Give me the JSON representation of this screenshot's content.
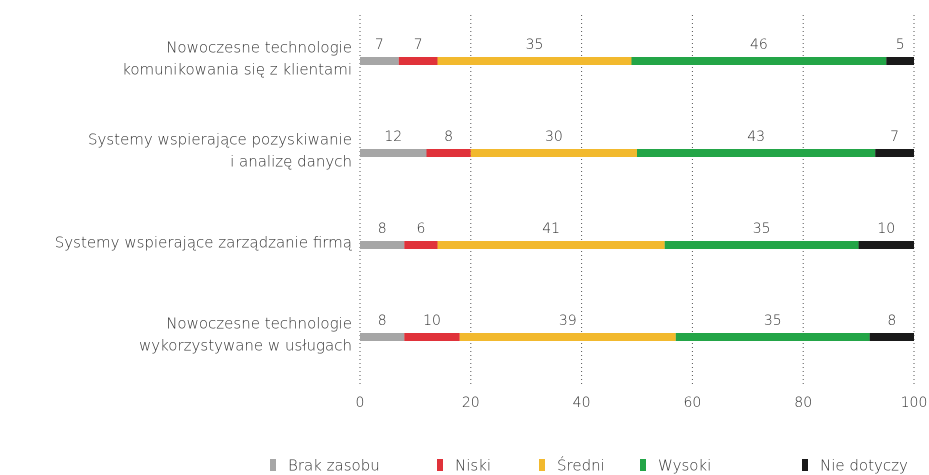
{
  "chart_data": {
    "type": "bar",
    "orientation": "horizontal",
    "stacked": true,
    "categories": [
      [
        "Nowoczesne technologie",
        "komunikowania się z klientami"
      ],
      [
        "Systemy wspierające pozyskiwanie",
        "i analizę danych"
      ],
      [
        "Systemy wspierające zarządzanie firmą"
      ],
      [
        "Nowoczesne technologie",
        "wykorzystywane w usługach"
      ]
    ],
    "series": [
      {
        "name": "Brak zasobu",
        "color": "#a6a6a6",
        "values": [
          7,
          12,
          8,
          8
        ]
      },
      {
        "name": "Niski",
        "color": "#e0323a",
        "values": [
          7,
          8,
          6,
          10
        ]
      },
      {
        "name": "Średni",
        "color": "#f2b92e",
        "values": [
          35,
          30,
          41,
          39
        ]
      },
      {
        "name": "Wysoki",
        "color": "#23a547",
        "values": [
          46,
          43,
          35,
          35
        ]
      },
      {
        "name": "Nie dotyczy",
        "color": "#1a1a1a",
        "values": [
          5,
          7,
          10,
          8
        ]
      }
    ],
    "xlim": [
      0,
      100
    ],
    "xticks": [
      0,
      20,
      40,
      60,
      80,
      100
    ],
    "grid": true,
    "legend": "bottom"
  }
}
